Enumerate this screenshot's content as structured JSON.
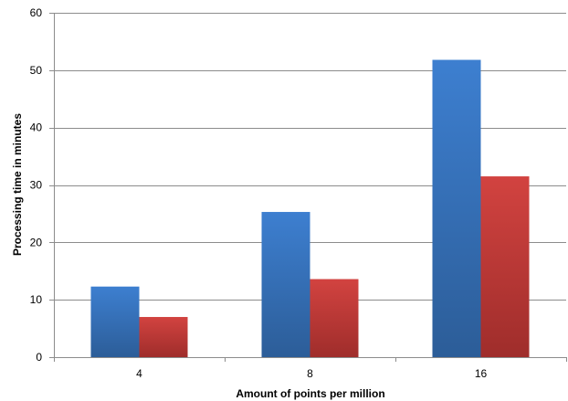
{
  "chart_data": {
    "type": "bar",
    "title": "",
    "xlabel": "Amount of points per million",
    "ylabel": "Processing time in minutes",
    "categories": [
      "4",
      "8",
      "16"
    ],
    "ylim": [
      0,
      60
    ],
    "yticks": [
      "0",
      "10",
      "20",
      "30",
      "40",
      "50",
      "60"
    ],
    "grid": true,
    "legend": "none",
    "series": [
      {
        "values": [
          12.3,
          25.3,
          51.8
        ],
        "color_top": "#3d7fd0",
        "color_bottom": "#2c5d98"
      },
      {
        "values": [
          7.0,
          13.6,
          31.5
        ],
        "color_top": "#d24340",
        "color_bottom": "#9f2d2b"
      }
    ]
  }
}
